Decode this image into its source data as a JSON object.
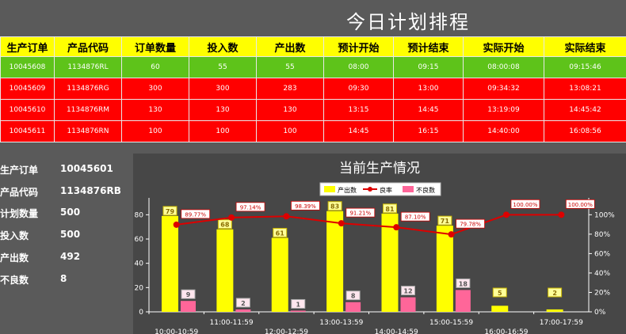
{
  "page_title": "今日计划排程",
  "schedule": {
    "headers": [
      "生产订单",
      "产品代码",
      "订单数量",
      "投入数",
      "产出数",
      "预计开始",
      "预计结束",
      "实际开始",
      "实际结束"
    ],
    "rows": [
      {
        "status": "green",
        "cells": [
          "10045608",
          "1134876RL",
          "60",
          "55",
          "55",
          "08:00",
          "09:15",
          "08:00:08",
          "09:15:46"
        ]
      },
      {
        "status": "red",
        "cells": [
          "10045609",
          "1134876RG",
          "300",
          "300",
          "283",
          "09:30",
          "13:00",
          "09:34:32",
          "13:08:21"
        ]
      },
      {
        "status": "red",
        "cells": [
          "10045610",
          "1134876RM",
          "130",
          "130",
          "130",
          "13:15",
          "14:45",
          "13:19:09",
          "14:45:42"
        ]
      },
      {
        "status": "red",
        "cells": [
          "10045611",
          "1134876RN",
          "100",
          "100",
          "100",
          "14:45",
          "16:15",
          "14:40:00",
          "16:08:56"
        ]
      }
    ]
  },
  "current": {
    "items": [
      {
        "label": "生产订单",
        "value": "10045601"
      },
      {
        "label": "产品代码",
        "value": "1134876RB"
      },
      {
        "label": "计划数量",
        "value": "500"
      },
      {
        "label": "投入数",
        "value": "500"
      },
      {
        "label": "产出数",
        "value": "492"
      },
      {
        "label": "不良数",
        "value": "8"
      }
    ]
  },
  "chart_data": {
    "type": "bar",
    "title": "当前生产情况",
    "categories": [
      "10:00-10:59",
      "11:00-11:59",
      "12:00-12:59",
      "13:00-13:59",
      "14:00-14:59",
      "15:00-15:59",
      "16:00-16:59",
      "17:00-17:59"
    ],
    "series": [
      {
        "name": "产出数",
        "type": "bar",
        "axis": "left",
        "color": "#ffff00",
        "values": [
          79,
          68,
          61,
          83,
          81,
          71,
          5,
          2
        ]
      },
      {
        "name": "不良数",
        "type": "bar",
        "axis": "left",
        "color": "#ff6699",
        "values": [
          9,
          2,
          1,
          8,
          12,
          18,
          0,
          0
        ]
      },
      {
        "name": "良率",
        "type": "line",
        "axis": "right",
        "color": "#dd0000",
        "values": [
          89.77,
          97.14,
          98.39,
          91.21,
          87.1,
          79.78,
          100.0,
          100.0
        ]
      }
    ],
    "bar_labels": {
      "产出数": [
        "79",
        "68",
        "61",
        "83",
        "81",
        "71",
        "5",
        "2"
      ],
      "不良数": [
        "9",
        "2",
        "1",
        "8",
        "12",
        "18",
        "",
        ""
      ]
    },
    "line_labels": [
      "89.77%",
      "97.14%",
      "98.39%",
      "91.21%",
      "87.10%",
      "79.78%",
      "100.00%",
      "100.00%"
    ],
    "y_left": {
      "min": 0,
      "max": 90,
      "ticks": [
        "0",
        "20",
        "40",
        "60",
        "80"
      ]
    },
    "y_right": {
      "min": 0,
      "max": 112.5,
      "ticks": [
        "0%",
        "20%",
        "40%",
        "60%",
        "80%",
        "100%"
      ]
    },
    "legend": {
      "position": "top-center",
      "items": [
        "产出数",
        "良率",
        "不良数"
      ]
    },
    "grid": false
  }
}
